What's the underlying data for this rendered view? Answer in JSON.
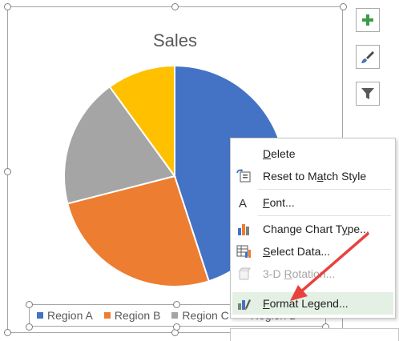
{
  "chart_data": {
    "type": "pie",
    "title": "Sales",
    "categories": [
      "Region A",
      "Region B",
      "Region C",
      "Region D"
    ],
    "values": [
      45,
      26,
      19,
      10
    ],
    "colors": [
      "#4472c4",
      "#ed7d31",
      "#a5a5a5",
      "#ffc000"
    ],
    "legend_position": "bottom"
  },
  "side_buttons": [
    {
      "icon": "plus-icon",
      "label": "Chart Elements"
    },
    {
      "icon": "brush-icon",
      "label": "Chart Styles"
    },
    {
      "icon": "filter-icon",
      "label": "Chart Filters"
    }
  ],
  "context_menu": {
    "items": [
      {
        "label": "Delete",
        "icon": "",
        "disabled": false
      },
      {
        "label": "Reset to Match Style",
        "icon": "reset-style-icon",
        "disabled": false
      },
      {
        "label": "Font...",
        "icon": "font-icon",
        "disabled": false
      },
      {
        "label": "Change Chart Type...",
        "icon": "change-chart-type-icon",
        "disabled": false
      },
      {
        "label": "Select Data...",
        "icon": "select-data-icon",
        "disabled": false
      },
      {
        "label": "3-D Rotation...",
        "icon": "3d-rotation-icon",
        "disabled": true
      },
      {
        "label": "Format Legend...",
        "icon": "format-legend-icon",
        "disabled": false,
        "highlighted": true
      }
    ]
  },
  "annotation": {
    "arrow_color": "#e8423f"
  }
}
